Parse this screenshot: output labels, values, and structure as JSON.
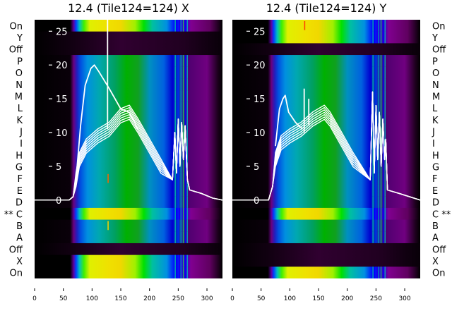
{
  "chart_data": [
    {
      "type": "heatmap",
      "title": "12.4 (Tile124=124) X",
      "row_labels": [
        "On",
        "Y",
        "Off",
        "P",
        "O",
        "N",
        "M",
        "L",
        "K",
        "J",
        "I",
        "H",
        "G",
        "F",
        "E",
        "D",
        "** C",
        "B",
        "A",
        "Off",
        "X",
        "On"
      ],
      "row_types": [
        "bright",
        "dark",
        "dark",
        "normal",
        "normal",
        "normal",
        "normal",
        "normal",
        "normal",
        "normal",
        "normal",
        "normal",
        "normal",
        "normal",
        "normal",
        "normal",
        "bright",
        "normal",
        "normal",
        "dark",
        "bright",
        "bright"
      ],
      "row_label_side": "left",
      "xlim": [
        0,
        327
      ],
      "x_ticks": [
        0,
        50,
        100,
        150,
        200,
        250,
        300
      ],
      "x_tick_labels": [
        "0",
        "50",
        "100",
        "150",
        "200",
        "250",
        "300"
      ],
      "ylim": [
        -11.6,
        26.7
      ],
      "y_ticks": [
        0,
        5,
        10,
        15,
        20,
        25
      ],
      "y_tick_labels": [
        "0",
        "5",
        "10",
        "15",
        "20",
        "25"
      ],
      "line_series": [
        {
          "name": "bundle",
          "copies": 7,
          "points": [
            [
              0,
              0
            ],
            [
              60,
              0
            ],
            [
              67,
              0.5
            ],
            [
              72,
              3
            ],
            [
              78,
              6
            ],
            [
              90,
              8
            ],
            [
              110,
              9.5
            ],
            [
              130,
              10.5
            ],
            [
              150,
              12.5
            ],
            [
              165,
              13
            ],
            [
              180,
              11
            ],
            [
              200,
              8
            ],
            [
              220,
              5
            ],
            [
              240,
              3
            ],
            [
              244,
              10
            ],
            [
              247,
              4
            ],
            [
              250,
              12
            ],
            [
              253,
              5
            ],
            [
              256,
              11.5
            ],
            [
              259,
              6
            ],
            [
              262,
              11
            ],
            [
              266,
              3
            ],
            [
              270,
              1.5
            ],
            [
              290,
              1
            ],
            [
              310,
              0.3
            ],
            [
              327,
              0
            ]
          ]
        },
        {
          "name": "outlier",
          "copies": 1,
          "points": [
            [
              72,
              3
            ],
            [
              80,
              11
            ],
            [
              88,
              17
            ],
            [
              98,
              19.5
            ],
            [
              104,
              20
            ],
            [
              112,
              19
            ],
            [
              130,
              16.5
            ],
            [
              150,
              13.5
            ],
            [
              165,
              13
            ],
            [
              180,
              10.5
            ]
          ]
        },
        {
          "name": "spike",
          "copies": 1,
          "points": [
            [
              127,
              10.5
            ],
            [
              127,
              27
            ]
          ]
        }
      ],
      "markers": [
        {
          "x": 127,
          "row": 13,
          "color": "#ff6000"
        },
        {
          "x": 127,
          "row": 17,
          "color": "#ffd000"
        }
      ]
    },
    {
      "type": "heatmap",
      "title": "12.4 (Tile124=124) Y",
      "row_labels": [
        "On",
        "Y",
        "Off",
        "P",
        "O",
        "N",
        "M",
        "L",
        "K",
        "J",
        "I",
        "H",
        "G",
        "F",
        "E",
        "D",
        "C **",
        "B",
        "A",
        "Off",
        "X",
        "On"
      ],
      "row_types": [
        "bright",
        "bright",
        "dark",
        "normal",
        "normal",
        "normal",
        "normal",
        "normal",
        "normal",
        "normal",
        "normal",
        "normal",
        "normal",
        "normal",
        "normal",
        "normal",
        "bright",
        "normal",
        "normal",
        "dark",
        "dark",
        "bright"
      ],
      "row_label_side": "right",
      "xlim": [
        0,
        327
      ],
      "x_ticks": [
        0,
        50,
        100,
        150,
        200,
        250,
        300
      ],
      "x_tick_labels": [
        "0",
        "50",
        "100",
        "150",
        "200",
        "250",
        "300"
      ],
      "ylim": [
        -11.6,
        26.7
      ],
      "y_ticks": [
        0,
        5,
        10,
        15,
        20,
        25
      ],
      "y_tick_labels": [
        "0",
        "5",
        "10",
        "15",
        "20",
        "25"
      ],
      "line_series": [
        {
          "name": "bundle",
          "copies": 7,
          "points": [
            [
              0,
              0
            ],
            [
              63,
              0
            ],
            [
              70,
              2
            ],
            [
              75,
              6
            ],
            [
              85,
              8.5
            ],
            [
              100,
              9.5
            ],
            [
              120,
              10.5
            ],
            [
              140,
              12
            ],
            [
              160,
              13
            ],
            [
              170,
              12
            ],
            [
              190,
              9
            ],
            [
              210,
              6
            ],
            [
              240,
              3
            ],
            [
              244,
              16
            ],
            [
              247,
              4
            ],
            [
              250,
              14
            ],
            [
              253,
              6
            ],
            [
              256,
              13
            ],
            [
              259,
              5
            ],
            [
              262,
              12
            ],
            [
              265,
              6
            ],
            [
              267,
              9
            ],
            [
              270,
              1.5
            ],
            [
              290,
              1
            ],
            [
              327,
              0
            ]
          ]
        },
        {
          "name": "outlier",
          "copies": 1,
          "points": [
            [
              75,
              8
            ],
            [
              82,
              13.5
            ],
            [
              88,
              15
            ],
            [
              92,
              15.5
            ],
            [
              98,
              13
            ],
            [
              110,
              11.5
            ],
            [
              122,
              10.5
            ]
          ]
        },
        {
          "name": "spike-1",
          "copies": 1,
          "points": [
            [
              125,
              10
            ],
            [
              125,
              16.5
            ]
          ]
        },
        {
          "name": "spike-2",
          "copies": 1,
          "points": [
            [
              133,
              11
            ],
            [
              133,
              15
            ]
          ]
        }
      ],
      "markers": [
        {
          "x": 125,
          "row": 0,
          "color": "#ff4000"
        }
      ]
    }
  ]
}
